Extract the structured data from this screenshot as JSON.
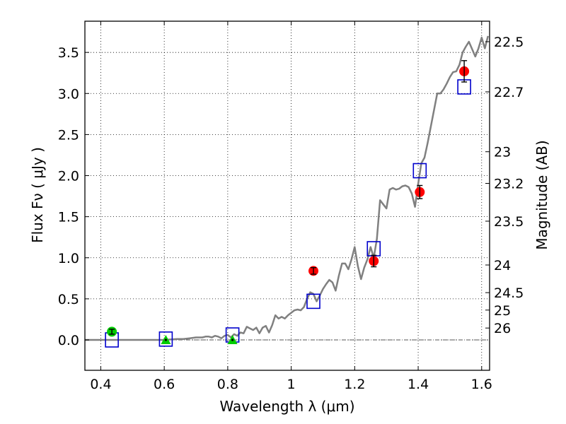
{
  "chart_data": {
    "type": "scatter",
    "xlabel": "Wavelength  λ (μm)",
    "ylabel": "Flux  Fν  ( μJy )",
    "y2label": "Magnitude (AB)",
    "xlim": [
      0.35,
      1.625
    ],
    "ylim": [
      -0.37,
      3.88
    ],
    "grid": true,
    "x_ticks": [
      0.4,
      0.6,
      0.8,
      1.0,
      1.2,
      1.4,
      1.6
    ],
    "x_tick_labels": [
      "0.4",
      "0.6",
      "0.8",
      "1",
      "1.2",
      "1.4",
      "1.6"
    ],
    "y_ticks": [
      0.0,
      0.5,
      1.0,
      1.5,
      2.0,
      2.5,
      3.0,
      3.5
    ],
    "y_tick_labels": [
      "0.0",
      "0.5",
      "1.0",
      "1.5",
      "2.0",
      "2.5",
      "3.0",
      "3.5"
    ],
    "y2_ticks": [
      22.5,
      22.7,
      23,
      23.2,
      23.5,
      24,
      24.5,
      25,
      26
    ],
    "y2_tick_labels": [
      "22.5",
      "22.7",
      "23",
      "23.2",
      "23.5",
      "24",
      "24.5",
      "25",
      "26"
    ],
    "reference_line_y": 0,
    "colors": {
      "sed": "#808080",
      "observed_red": "#ff0000",
      "observed_green": "#00cc00",
      "model_box": "#0000cc",
      "errorbar": "#000000",
      "reference_line": "#555555"
    },
    "series": [
      {
        "kind": "line",
        "x": [
          0.35,
          0.42,
          0.5,
          0.55,
          0.6,
          0.64,
          0.66,
          0.68,
          0.7,
          0.71,
          0.72,
          0.73,
          0.74,
          0.75,
          0.76,
          0.77,
          0.78,
          0.79,
          0.8,
          0.81,
          0.82,
          0.83,
          0.84,
          0.85,
          0.86,
          0.87,
          0.88,
          0.89,
          0.9,
          0.91,
          0.92,
          0.93,
          0.94,
          0.95,
          0.96,
          0.97,
          0.98,
          0.99,
          1.0,
          1.01,
          1.02,
          1.03,
          1.04,
          1.05,
          1.06,
          1.07,
          1.08,
          1.09,
          1.1,
          1.11,
          1.12,
          1.13,
          1.14,
          1.15,
          1.16,
          1.17,
          1.18,
          1.19,
          1.2,
          1.21,
          1.22,
          1.23,
          1.24,
          1.25,
          1.26,
          1.27,
          1.28,
          1.29,
          1.3,
          1.31,
          1.32,
          1.33,
          1.34,
          1.35,
          1.36,
          1.37,
          1.38,
          1.39,
          1.4,
          1.41,
          1.42,
          1.43,
          1.44,
          1.45,
          1.46,
          1.47,
          1.48,
          1.49,
          1.5,
          1.51,
          1.52,
          1.53,
          1.54,
          1.55,
          1.56,
          1.57,
          1.58,
          1.59,
          1.6,
          1.61,
          1.62
        ],
        "y": [
          0.0,
          0.0,
          0.0,
          0.0,
          0.0,
          0.01,
          0.01,
          0.02,
          0.03,
          0.03,
          0.03,
          0.04,
          0.04,
          0.03,
          0.05,
          0.04,
          0.02,
          0.05,
          0.06,
          0.03,
          0.07,
          0.05,
          0.09,
          0.08,
          0.16,
          0.14,
          0.12,
          0.15,
          0.08,
          0.15,
          0.17,
          0.09,
          0.18,
          0.3,
          0.26,
          0.28,
          0.26,
          0.3,
          0.33,
          0.36,
          0.37,
          0.36,
          0.4,
          0.5,
          0.58,
          0.56,
          0.47,
          0.54,
          0.62,
          0.68,
          0.73,
          0.7,
          0.6,
          0.78,
          0.93,
          0.93,
          0.86,
          0.98,
          1.13,
          0.9,
          0.74,
          0.88,
          0.98,
          1.13,
          1.0,
          1.23,
          1.7,
          1.65,
          1.6,
          1.83,
          1.85,
          1.83,
          1.84,
          1.87,
          1.88,
          1.86,
          1.78,
          1.62,
          1.9,
          2.15,
          2.22,
          2.4,
          2.6,
          2.8,
          3.0,
          3.0,
          3.05,
          3.12,
          3.2,
          3.26,
          3.27,
          3.35,
          3.5,
          3.57,
          3.63,
          3.54,
          3.45,
          3.55,
          3.68,
          3.55,
          3.7
        ]
      },
      {
        "kind": "model_boxes",
        "x": [
          0.435,
          0.605,
          0.815,
          1.07,
          1.26,
          1.405,
          1.545
        ],
        "y": [
          0.0,
          0.01,
          0.06,
          0.47,
          1.11,
          2.06,
          3.08
        ]
      },
      {
        "kind": "observed_circles",
        "x": [
          0.435,
          1.07,
          1.26,
          1.405,
          1.545
        ],
        "y": [
          0.1,
          0.84,
          0.96,
          1.8,
          3.27
        ],
        "yerr": [
          0.03,
          0.04,
          0.07,
          0.08,
          0.13
        ],
        "color": [
          "green",
          "red",
          "red",
          "red",
          "red"
        ]
      },
      {
        "kind": "observed_triangles",
        "x": [
          0.605,
          0.815
        ],
        "y": [
          0.0,
          0.0
        ],
        "color": [
          "green",
          "green"
        ]
      }
    ]
  }
}
